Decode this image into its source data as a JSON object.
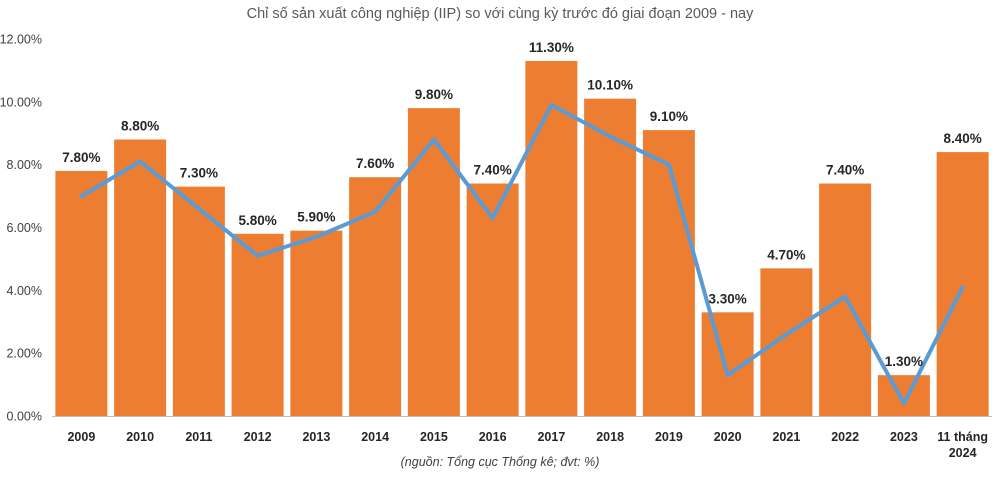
{
  "chart_data": {
    "type": "bar",
    "title": "Chỉ số sản xuất công nghiệp (IIP) so với cùng kỳ trước đó giai đoạn 2009 - nay",
    "source_note": "(nguồn: Tổng cục Thống kê; đvt: %)",
    "categories": [
      "2009",
      "2010",
      "2011",
      "2012",
      "2013",
      "2014",
      "2015",
      "2016",
      "2017",
      "2018",
      "2019",
      "2020",
      "2021",
      "2022",
      "2023",
      "11 tháng\n2024"
    ],
    "values": [
      7.8,
      8.8,
      7.3,
      5.8,
      5.9,
      7.6,
      9.8,
      7.4,
      11.3,
      10.1,
      9.1,
      3.3,
      4.7,
      7.4,
      1.3,
      8.4
    ],
    "data_labels": [
      "7.80%",
      "8.80%",
      "7.30%",
      "5.80%",
      "5.90%",
      "7.60%",
      "9.80%",
      "7.40%",
      "11.30%",
      "10.10%",
      "9.10%",
      "3.30%",
      "4.70%",
      "7.40%",
      "1.30%",
      "8.40%"
    ],
    "line_series": {
      "values": [
        7.0,
        8.1,
        6.6,
        5.1,
        5.7,
        6.5,
        8.8,
        6.3,
        9.9,
        8.9,
        8.0,
        1.3,
        2.6,
        3.8,
        0.4,
        4.1
      ]
    },
    "ylim": [
      0,
      12
    ],
    "yticks": [
      "0.00%",
      "2.00%",
      "4.00%",
      "6.00%",
      "8.00%",
      "10.00%",
      "12.00%"
    ],
    "grid": false,
    "xlabel": "",
    "ylabel": "",
    "colors": {
      "bar": "#ED7D31",
      "line": "#5B9BD5"
    }
  }
}
